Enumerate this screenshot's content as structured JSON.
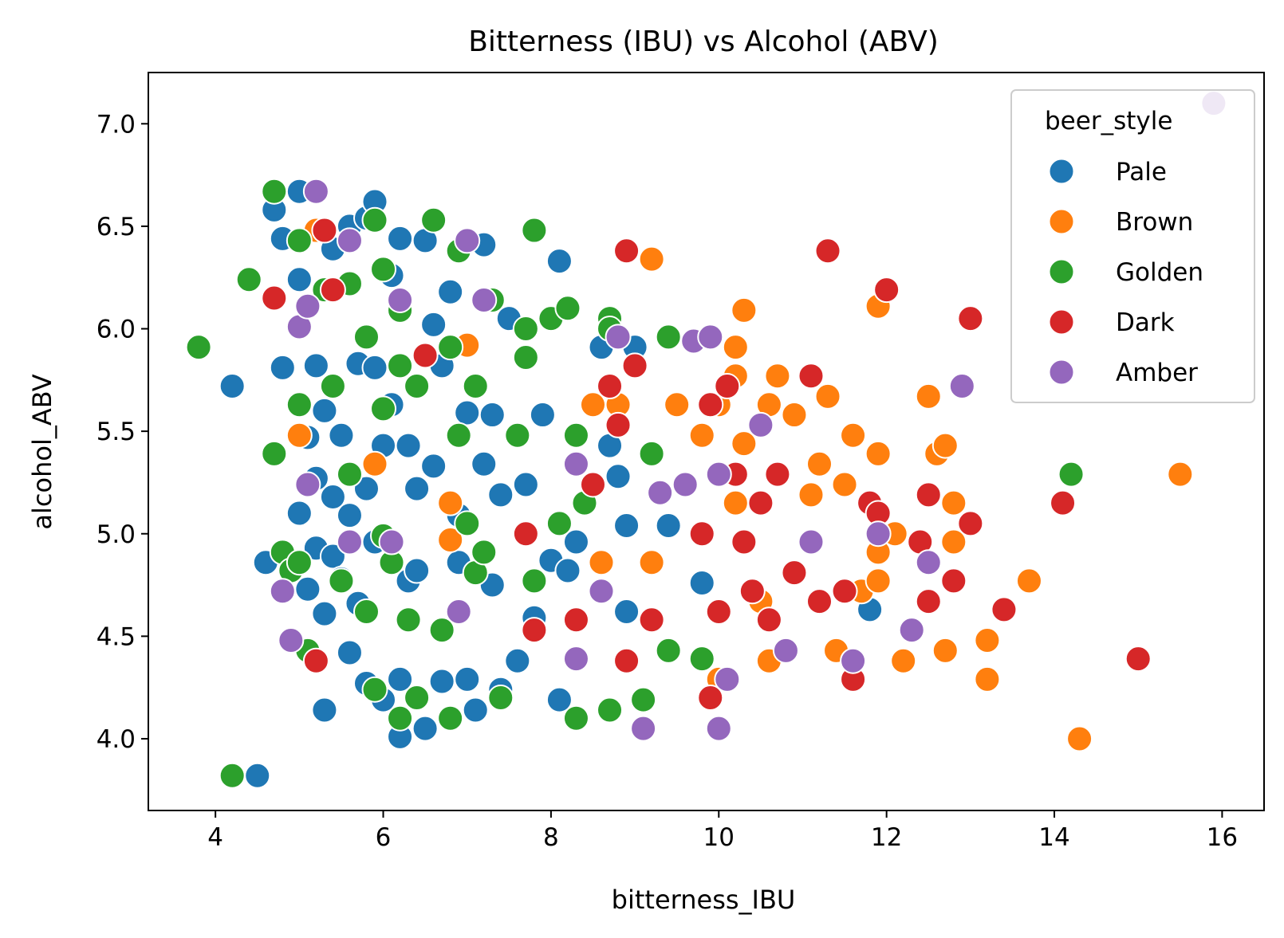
{
  "chart_data": {
    "type": "scatter",
    "title": "Bitterness (IBU) vs Alcohol (ABV)",
    "xlabel": "bitterness_IBU",
    "ylabel": "alcohol_ABV",
    "xlim": [
      3.2,
      16.5
    ],
    "ylim": [
      3.65,
      7.25
    ],
    "xticks": [
      4,
      6,
      8,
      10,
      12,
      14,
      16
    ],
    "xtick_labels": [
      "4",
      "6",
      "8",
      "10",
      "12",
      "14",
      "16"
    ],
    "yticks": [
      4.0,
      4.5,
      5.0,
      5.5,
      6.0,
      6.5,
      7.0
    ],
    "ytick_labels": [
      "4.0",
      "4.5",
      "5.0",
      "5.5",
      "6.0",
      "6.5",
      "7.0"
    ],
    "grid": false,
    "legend": {
      "title": "beer_style",
      "position": "top-right"
    },
    "series": [
      {
        "name": "Pale",
        "color": "#1f77b4",
        "points": [
          [
            4.2,
            5.72
          ],
          [
            4.5,
            3.82
          ],
          [
            4.6,
            4.86
          ],
          [
            4.7,
            6.58
          ],
          [
            4.8,
            6.44
          ],
          [
            4.8,
            5.81
          ],
          [
            5.0,
            6.67
          ],
          [
            5.0,
            6.24
          ],
          [
            5.0,
            5.1
          ],
          [
            5.1,
            5.47
          ],
          [
            5.1,
            4.73
          ],
          [
            5.2,
            5.82
          ],
          [
            5.2,
            5.27
          ],
          [
            5.2,
            4.93
          ],
          [
            5.3,
            5.6
          ],
          [
            5.3,
            4.61
          ],
          [
            5.3,
            4.14
          ],
          [
            5.4,
            6.39
          ],
          [
            5.4,
            5.18
          ],
          [
            5.4,
            4.89
          ],
          [
            5.5,
            5.48
          ],
          [
            5.5,
            4.78
          ],
          [
            5.6,
            6.5
          ],
          [
            5.6,
            5.09
          ],
          [
            5.6,
            4.42
          ],
          [
            5.7,
            5.83
          ],
          [
            5.7,
            4.66
          ],
          [
            5.8,
            6.54
          ],
          [
            5.8,
            5.22
          ],
          [
            5.8,
            4.27
          ],
          [
            5.9,
            6.62
          ],
          [
            5.9,
            5.81
          ],
          [
            5.9,
            4.96
          ],
          [
            6.0,
            5.43
          ],
          [
            6.0,
            4.19
          ],
          [
            6.1,
            6.26
          ],
          [
            6.1,
            5.63
          ],
          [
            6.2,
            6.44
          ],
          [
            6.2,
            4.29
          ],
          [
            6.2,
            4.01
          ],
          [
            6.3,
            5.43
          ],
          [
            6.3,
            4.77
          ],
          [
            6.4,
            5.22
          ],
          [
            6.4,
            4.82
          ],
          [
            6.5,
            6.43
          ],
          [
            6.5,
            4.05
          ],
          [
            6.6,
            6.02
          ],
          [
            6.6,
            5.33
          ],
          [
            6.7,
            5.82
          ],
          [
            6.7,
            4.28
          ],
          [
            6.8,
            6.18
          ],
          [
            6.9,
            5.09
          ],
          [
            6.9,
            4.86
          ],
          [
            7.0,
            5.59
          ],
          [
            7.0,
            4.29
          ],
          [
            7.1,
            4.14
          ],
          [
            7.2,
            6.41
          ],
          [
            7.2,
            5.34
          ],
          [
            7.3,
            5.58
          ],
          [
            7.3,
            4.75
          ],
          [
            7.4,
            5.19
          ],
          [
            7.4,
            4.24
          ],
          [
            7.5,
            6.05
          ],
          [
            7.6,
            4.38
          ],
          [
            7.7,
            5.24
          ],
          [
            7.8,
            4.59
          ],
          [
            7.9,
            5.58
          ],
          [
            8.0,
            4.87
          ],
          [
            8.1,
            6.33
          ],
          [
            8.1,
            4.19
          ],
          [
            8.2,
            4.82
          ],
          [
            8.3,
            4.96
          ],
          [
            8.6,
            5.91
          ],
          [
            8.7,
            5.43
          ],
          [
            8.8,
            5.28
          ],
          [
            8.9,
            4.62
          ],
          [
            8.9,
            5.04
          ],
          [
            9.0,
            5.91
          ],
          [
            9.4,
            5.04
          ],
          [
            9.8,
            4.76
          ],
          [
            11.8,
            4.63
          ]
        ]
      },
      {
        "name": "Brown",
        "color": "#ff7f0e",
        "points": [
          [
            5.0,
            5.48
          ],
          [
            5.2,
            6.48
          ],
          [
            5.9,
            5.34
          ],
          [
            6.8,
            5.15
          ],
          [
            6.8,
            4.97
          ],
          [
            7.0,
            5.92
          ],
          [
            8.5,
            5.63
          ],
          [
            8.6,
            4.86
          ],
          [
            8.8,
            5.63
          ],
          [
            9.2,
            6.34
          ],
          [
            9.2,
            4.86
          ],
          [
            9.5,
            5.63
          ],
          [
            9.8,
            5.48
          ],
          [
            10.0,
            5.63
          ],
          [
            10.0,
            4.29
          ],
          [
            10.2,
            5.91
          ],
          [
            10.2,
            5.77
          ],
          [
            10.2,
            5.15
          ],
          [
            10.3,
            6.09
          ],
          [
            10.3,
            5.44
          ],
          [
            10.5,
            4.67
          ],
          [
            10.6,
            5.63
          ],
          [
            10.6,
            4.38
          ],
          [
            10.7,
            5.77
          ],
          [
            10.9,
            5.58
          ],
          [
            11.1,
            5.19
          ],
          [
            11.2,
            5.34
          ],
          [
            11.3,
            5.67
          ],
          [
            11.4,
            4.43
          ],
          [
            11.5,
            5.24
          ],
          [
            11.6,
            5.48
          ],
          [
            11.7,
            4.72
          ],
          [
            11.9,
            5.39
          ],
          [
            11.9,
            4.91
          ],
          [
            11.9,
            4.77
          ],
          [
            11.9,
            6.11
          ],
          [
            12.1,
            5.0
          ],
          [
            12.2,
            4.38
          ],
          [
            12.5,
            5.67
          ],
          [
            12.6,
            5.39
          ],
          [
            12.7,
            5.43
          ],
          [
            12.7,
            4.43
          ],
          [
            12.8,
            5.15
          ],
          [
            12.8,
            4.96
          ],
          [
            13.2,
            4.48
          ],
          [
            13.2,
            4.29
          ],
          [
            13.7,
            4.77
          ],
          [
            14.3,
            4.0
          ],
          [
            15.5,
            5.29
          ]
        ]
      },
      {
        "name": "Golden",
        "color": "#2ca02c",
        "points": [
          [
            3.8,
            5.91
          ],
          [
            4.2,
            3.82
          ],
          [
            4.4,
            6.24
          ],
          [
            4.7,
            6.67
          ],
          [
            4.7,
            5.39
          ],
          [
            4.8,
            4.91
          ],
          [
            4.9,
            4.82
          ],
          [
            5.0,
            6.43
          ],
          [
            5.0,
            5.63
          ],
          [
            5.0,
            4.86
          ],
          [
            5.1,
            4.43
          ],
          [
            5.3,
            6.19
          ],
          [
            5.4,
            5.72
          ],
          [
            5.5,
            4.77
          ],
          [
            5.6,
            5.29
          ],
          [
            5.6,
            6.22
          ],
          [
            5.8,
            4.62
          ],
          [
            5.8,
            5.96
          ],
          [
            5.9,
            6.53
          ],
          [
            5.9,
            4.24
          ],
          [
            6.0,
            5.61
          ],
          [
            6.0,
            4.99
          ],
          [
            6.0,
            6.29
          ],
          [
            6.1,
            4.86
          ],
          [
            6.2,
            6.09
          ],
          [
            6.2,
            5.82
          ],
          [
            6.2,
            4.1
          ],
          [
            6.3,
            4.58
          ],
          [
            6.4,
            5.72
          ],
          [
            6.4,
            4.2
          ],
          [
            6.6,
            6.53
          ],
          [
            6.7,
            4.53
          ],
          [
            6.8,
            5.91
          ],
          [
            6.8,
            4.1
          ],
          [
            6.9,
            6.38
          ],
          [
            6.9,
            5.48
          ],
          [
            7.0,
            5.05
          ],
          [
            7.1,
            5.72
          ],
          [
            7.1,
            4.81
          ],
          [
            7.2,
            4.91
          ],
          [
            7.3,
            6.14
          ],
          [
            7.4,
            4.2
          ],
          [
            7.6,
            5.48
          ],
          [
            7.7,
            6.0
          ],
          [
            7.7,
            5.86
          ],
          [
            7.8,
            6.48
          ],
          [
            7.8,
            4.77
          ],
          [
            8.0,
            6.05
          ],
          [
            8.1,
            5.05
          ],
          [
            8.2,
            6.1
          ],
          [
            8.3,
            5.48
          ],
          [
            8.3,
            4.1
          ],
          [
            8.4,
            5.15
          ],
          [
            8.7,
            6.05
          ],
          [
            8.7,
            4.14
          ],
          [
            8.7,
            6.0
          ],
          [
            9.1,
            4.19
          ],
          [
            9.2,
            5.39
          ],
          [
            9.4,
            5.96
          ],
          [
            9.4,
            4.43
          ],
          [
            9.8,
            4.39
          ],
          [
            14.2,
            5.29
          ]
        ]
      },
      {
        "name": "Dark",
        "color": "#d62728",
        "points": [
          [
            4.7,
            6.15
          ],
          [
            5.2,
            4.38
          ],
          [
            5.3,
            6.48
          ],
          [
            5.4,
            6.19
          ],
          [
            6.5,
            5.87
          ],
          [
            7.7,
            5.0
          ],
          [
            7.8,
            4.53
          ],
          [
            8.3,
            4.58
          ],
          [
            8.5,
            5.24
          ],
          [
            8.7,
            5.72
          ],
          [
            8.8,
            5.53
          ],
          [
            8.9,
            6.38
          ],
          [
            8.9,
            4.38
          ],
          [
            9.0,
            5.82
          ],
          [
            9.2,
            4.58
          ],
          [
            9.8,
            5.0
          ],
          [
            9.9,
            5.63
          ],
          [
            9.9,
            4.2
          ],
          [
            10.0,
            4.62
          ],
          [
            10.1,
            5.72
          ],
          [
            10.2,
            5.29
          ],
          [
            10.3,
            4.96
          ],
          [
            10.4,
            4.72
          ],
          [
            10.5,
            5.15
          ],
          [
            10.6,
            4.58
          ],
          [
            10.7,
            5.29
          ],
          [
            10.9,
            4.81
          ],
          [
            11.1,
            5.77
          ],
          [
            11.2,
            4.67
          ],
          [
            11.3,
            6.38
          ],
          [
            11.5,
            4.72
          ],
          [
            11.6,
            4.29
          ],
          [
            11.8,
            5.15
          ],
          [
            11.9,
            5.1
          ],
          [
            12.0,
            6.19
          ],
          [
            12.4,
            4.96
          ],
          [
            12.5,
            5.19
          ],
          [
            12.5,
            4.67
          ],
          [
            12.8,
            4.77
          ],
          [
            13.0,
            6.05
          ],
          [
            13.0,
            5.05
          ],
          [
            13.4,
            4.63
          ],
          [
            14.1,
            5.15
          ],
          [
            15.0,
            4.39
          ]
        ]
      },
      {
        "name": "Amber",
        "color": "#9467bd",
        "points": [
          [
            4.8,
            4.72
          ],
          [
            4.9,
            4.48
          ],
          [
            5.0,
            6.01
          ],
          [
            5.1,
            6.11
          ],
          [
            5.1,
            5.24
          ],
          [
            5.2,
            6.67
          ],
          [
            5.6,
            6.43
          ],
          [
            5.6,
            4.96
          ],
          [
            6.1,
            4.96
          ],
          [
            6.2,
            6.14
          ],
          [
            6.9,
            4.62
          ],
          [
            7.0,
            6.43
          ],
          [
            7.2,
            6.14
          ],
          [
            8.3,
            4.39
          ],
          [
            8.3,
            5.34
          ],
          [
            8.6,
            4.72
          ],
          [
            8.8,
            5.96
          ],
          [
            9.1,
            4.05
          ],
          [
            9.3,
            5.2
          ],
          [
            9.6,
            5.24
          ],
          [
            9.7,
            5.94
          ],
          [
            9.9,
            5.96
          ],
          [
            10.0,
            4.05
          ],
          [
            10.0,
            5.29
          ],
          [
            10.1,
            4.29
          ],
          [
            10.5,
            5.53
          ],
          [
            10.8,
            4.43
          ],
          [
            11.1,
            4.96
          ],
          [
            11.6,
            4.38
          ],
          [
            11.9,
            5.0
          ],
          [
            12.3,
            4.53
          ],
          [
            12.5,
            4.86
          ],
          [
            12.9,
            5.72
          ],
          [
            15.9,
            7.1
          ]
        ]
      }
    ]
  }
}
